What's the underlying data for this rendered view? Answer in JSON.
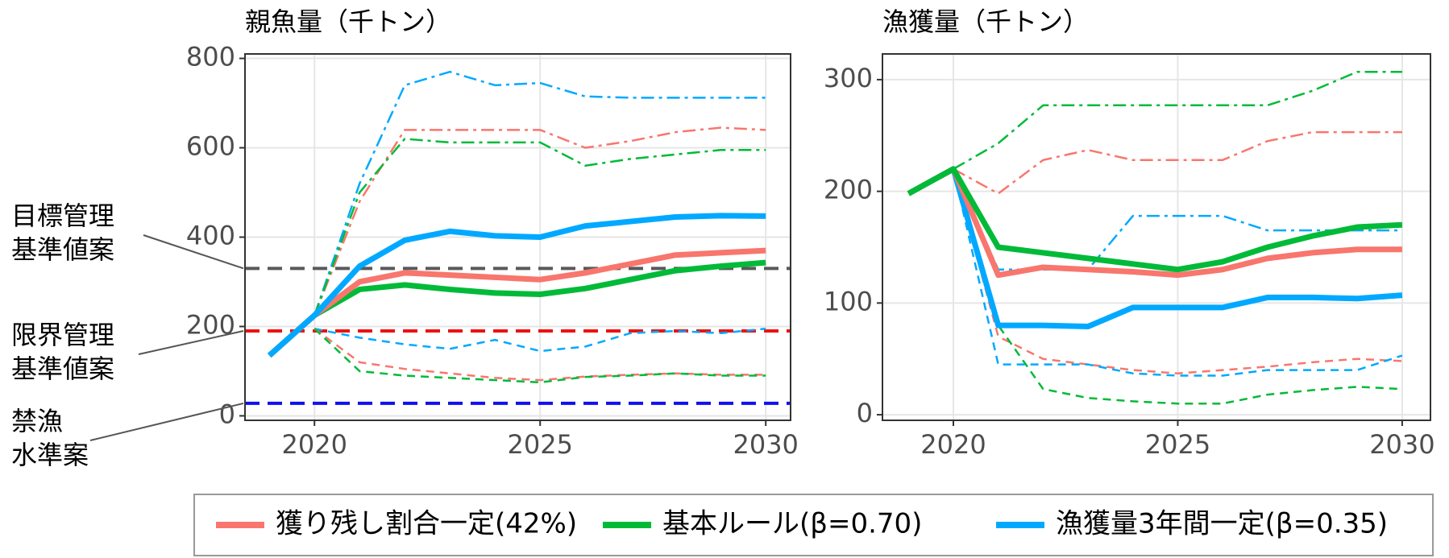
{
  "chart_data": [
    {
      "type": "line",
      "title": "親魚量（千トン）",
      "x": [
        2019,
        2020,
        2021,
        2022,
        2023,
        2024,
        2025,
        2026,
        2027,
        2028,
        2029,
        2030
      ],
      "xlim": [
        2018.46,
        2030.55
      ],
      "xticks": [
        2020,
        2025,
        2030
      ],
      "ylim": [
        -10,
        810
      ],
      "yticks": [
        0,
        200,
        400,
        600,
        800
      ],
      "grid": true,
      "series": [
        {
          "color": "#00a9ff",
          "style": "dashdot",
          "values": [
            null,
            225,
            520,
            740,
            770,
            740,
            745,
            715,
            712,
            712,
            712,
            712
          ]
        },
        {
          "color": "#f8766d",
          "style": "dashdot",
          "values": [
            null,
            225,
            480,
            640,
            640,
            640,
            640,
            600,
            615,
            635,
            645,
            640
          ]
        },
        {
          "color": "#00ba38",
          "style": "dashdot",
          "values": [
            null,
            225,
            500,
            620,
            612,
            612,
            612,
            560,
            575,
            585,
            595,
            595
          ]
        },
        {
          "color": "#00a9ff",
          "style": "dashed",
          "values": [
            null,
            195,
            175,
            160,
            150,
            170,
            145,
            155,
            185,
            190,
            185,
            195
          ]
        },
        {
          "color": "#f8766d",
          "style": "dashed",
          "values": [
            null,
            195,
            120,
            105,
            95,
            85,
            80,
            88,
            92,
            95,
            92,
            92
          ]
        },
        {
          "color": "#00ba38",
          "style": "dashed",
          "values": [
            null,
            195,
            100,
            90,
            85,
            80,
            75,
            87,
            90,
            95,
            90,
            90
          ]
        },
        {
          "color": "#00ba38",
          "style": "solid",
          "values": [
            135,
            225,
            283,
            293,
            283,
            275,
            272,
            285,
            305,
            325,
            335,
            343
          ]
        },
        {
          "color": "#f8766d",
          "style": "solid",
          "values": [
            135,
            225,
            300,
            320,
            315,
            310,
            305,
            320,
            340,
            360,
            365,
            370
          ]
        },
        {
          "color": "#00a9ff",
          "style": "solid",
          "values": [
            135,
            225,
            335,
            393,
            413,
            403,
            400,
            425,
            435,
            445,
            448,
            447
          ]
        }
      ],
      "hlines": [
        {
          "value": 330,
          "color": "#595959",
          "label": [
            "目標管理",
            "基準値案"
          ]
        },
        {
          "value": 190,
          "color": "#ee1111",
          "label": [
            "限界管理",
            "基準値案"
          ]
        },
        {
          "value": 28,
          "color": "#1010ee",
          "label": [
            "禁漁",
            "水準案"
          ]
        }
      ]
    },
    {
      "type": "line",
      "title": "漁獲量（千トン）",
      "x": [
        2019,
        2020,
        2021,
        2022,
        2023,
        2024,
        2025,
        2026,
        2027,
        2028,
        2029,
        2030
      ],
      "xlim": [
        2018.42,
        2030.63
      ],
      "xticks": [
        2020,
        2025,
        2030
      ],
      "ylim": [
        -5,
        323
      ],
      "yticks": [
        0,
        100,
        200,
        300
      ],
      "grid": true,
      "series": [
        {
          "color": "#00ba38",
          "style": "dashdot",
          "values": [
            null,
            220,
            243,
            277,
            277,
            277,
            277,
            277,
            277,
            290,
            307,
            307
          ]
        },
        {
          "color": "#f8766d",
          "style": "dashdot",
          "values": [
            null,
            220,
            198,
            228,
            237,
            228,
            228,
            228,
            245,
            253,
            253,
            253
          ]
        },
        {
          "color": "#00a9ff",
          "style": "dashdot",
          "values": [
            null,
            220,
            130,
            130,
            130,
            178,
            178,
            178,
            165,
            165,
            165,
            165
          ]
        },
        {
          "color": "#f8766d",
          "style": "dashed",
          "values": [
            null,
            220,
            70,
            50,
            45,
            40,
            37,
            40,
            43,
            47,
            50,
            48
          ]
        },
        {
          "color": "#00ba38",
          "style": "dashed",
          "values": [
            null,
            220,
            80,
            23,
            15,
            12,
            10,
            10,
            18,
            22,
            25,
            23
          ]
        },
        {
          "color": "#00a9ff",
          "style": "dashed",
          "values": [
            null,
            220,
            45,
            45,
            45,
            37,
            35,
            35,
            40,
            40,
            40,
            53
          ]
        },
        {
          "color": "#00a9ff",
          "style": "solid",
          "values": [
            198,
            220,
            80,
            80,
            79,
            96,
            96,
            96,
            105,
            105,
            104,
            107
          ]
        },
        {
          "color": "#f8766d",
          "style": "solid",
          "values": [
            198,
            220,
            125,
            132,
            130,
            128,
            125,
            130,
            140,
            145,
            148,
            148
          ]
        },
        {
          "color": "#00ba38",
          "style": "solid",
          "values": [
            198,
            220,
            150,
            145,
            140,
            135,
            130,
            137,
            150,
            160,
            168,
            170
          ]
        }
      ]
    }
  ],
  "legend": [
    {
      "name": "獲り残し割合一定(42%)",
      "color": "#f8766d"
    },
    {
      "name": "基本ルール(β=0.70)",
      "color": "#00ba38"
    },
    {
      "name": "漁獲量3年間一定(β=0.35)",
      "color": "#00a9ff"
    }
  ]
}
